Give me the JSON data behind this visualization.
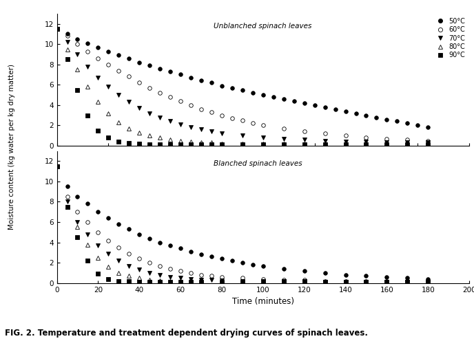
{
  "title": "FIG. 2. Temperature and treatment dependent drying curves of spinach leaves.",
  "xlabel": "Time (minutes)",
  "ylabel": "Moisture content (kg water per kg dry matter)",
  "label_unblanched": "Unblanched spinach leaves",
  "label_blanched": "Blanched spinach leaves",
  "legend_labels": [
    "50°C",
    "60°C",
    "70°C",
    "80°C",
    "90°C"
  ],
  "xlim": [
    0,
    200
  ],
  "ylim": [
    0,
    13
  ],
  "yticks": [
    0,
    2,
    4,
    6,
    8,
    10,
    12
  ],
  "xticks": [
    0,
    20,
    40,
    60,
    80,
    100,
    120,
    140,
    160,
    180,
    200
  ],
  "unblanched": {
    "50C": {
      "x": [
        0,
        5,
        10,
        15,
        20,
        25,
        30,
        35,
        40,
        45,
        50,
        55,
        60,
        65,
        70,
        75,
        80,
        85,
        90,
        95,
        100,
        105,
        110,
        115,
        120,
        125,
        130,
        135,
        140,
        145,
        150,
        155,
        160,
        165,
        170,
        175,
        180
      ],
      "y": [
        11.5,
        11.0,
        10.5,
        10.1,
        9.7,
        9.3,
        8.9,
        8.6,
        8.2,
        7.9,
        7.6,
        7.3,
        7.0,
        6.7,
        6.4,
        6.2,
        5.9,
        5.7,
        5.5,
        5.2,
        5.0,
        4.8,
        4.6,
        4.4,
        4.2,
        4.0,
        3.8,
        3.6,
        3.4,
        3.2,
        3.0,
        2.8,
        2.6,
        2.4,
        2.2,
        2.0,
        1.8
      ]
    },
    "60C": {
      "x": [
        0,
        5,
        10,
        15,
        20,
        25,
        30,
        35,
        40,
        45,
        50,
        55,
        60,
        65,
        70,
        75,
        80,
        85,
        90,
        95,
        100,
        110,
        120,
        130,
        140,
        150,
        160,
        170,
        180
      ],
      "y": [
        11.5,
        10.8,
        10.0,
        9.3,
        8.6,
        8.0,
        7.4,
        6.8,
        6.2,
        5.7,
        5.2,
        4.8,
        4.4,
        4.0,
        3.6,
        3.3,
        3.0,
        2.7,
        2.5,
        2.2,
        2.0,
        1.7,
        1.4,
        1.2,
        1.0,
        0.8,
        0.7,
        0.6,
        0.5
      ]
    },
    "70C": {
      "x": [
        0,
        5,
        10,
        15,
        20,
        25,
        30,
        35,
        40,
        45,
        50,
        55,
        60,
        65,
        70,
        75,
        80,
        90,
        100,
        110,
        120,
        130,
        140,
        150,
        160,
        170,
        180
      ],
      "y": [
        11.5,
        10.2,
        9.0,
        7.8,
        6.7,
        5.8,
        5.0,
        4.3,
        3.7,
        3.2,
        2.8,
        2.4,
        2.1,
        1.8,
        1.6,
        1.4,
        1.2,
        1.0,
        0.8,
        0.7,
        0.6,
        0.5,
        0.4,
        0.4,
        0.3,
        0.3,
        0.3
      ]
    },
    "80C": {
      "x": [
        0,
        5,
        10,
        15,
        20,
        25,
        30,
        35,
        40,
        45,
        50,
        55,
        60,
        65,
        70,
        75,
        80,
        90,
        100,
        110,
        120,
        130,
        140,
        150,
        160,
        170,
        180
      ],
      "y": [
        11.5,
        9.5,
        7.5,
        5.8,
        4.3,
        3.2,
        2.3,
        1.7,
        1.3,
        1.0,
        0.8,
        0.6,
        0.5,
        0.4,
        0.3,
        0.3,
        0.2,
        0.2,
        0.2,
        0.2,
        0.2,
        0.15,
        0.15,
        0.15,
        0.15,
        0.1,
        0.1
      ]
    },
    "90C": {
      "x": [
        0,
        5,
        10,
        15,
        20,
        25,
        30,
        35,
        40,
        45,
        50,
        55,
        60,
        65,
        70,
        75,
        80,
        90,
        100,
        110,
        120,
        130,
        140,
        150,
        160,
        170,
        180
      ],
      "y": [
        11.5,
        8.5,
        5.5,
        3.0,
        1.5,
        0.8,
        0.4,
        0.25,
        0.18,
        0.15,
        0.13,
        0.12,
        0.11,
        0.1,
        0.1,
        0.1,
        0.1,
        0.1,
        0.1,
        0.1,
        0.1,
        0.1,
        0.1,
        0.1,
        0.1,
        0.1,
        0.1
      ]
    }
  },
  "blanched": {
    "50C": {
      "x": [
        0,
        5,
        10,
        15,
        20,
        25,
        30,
        35,
        40,
        45,
        50,
        55,
        60,
        65,
        70,
        75,
        80,
        85,
        90,
        95,
        100,
        110,
        120,
        130,
        140,
        150,
        160,
        170,
        180
      ],
      "y": [
        11.5,
        9.5,
        8.5,
        7.8,
        7.0,
        6.4,
        5.8,
        5.3,
        4.8,
        4.4,
        4.0,
        3.7,
        3.4,
        3.1,
        2.8,
        2.6,
        2.4,
        2.2,
        2.0,
        1.8,
        1.7,
        1.4,
        1.2,
        1.0,
        0.8,
        0.7,
        0.6,
        0.5,
        0.4
      ]
    },
    "60C": {
      "x": [
        0,
        5,
        10,
        15,
        20,
        25,
        30,
        35,
        40,
        45,
        50,
        55,
        60,
        65,
        70,
        75,
        80,
        90,
        100,
        110,
        120,
        130,
        140,
        150,
        160,
        170,
        180
      ],
      "y": [
        11.5,
        8.5,
        7.0,
        6.0,
        5.0,
        4.2,
        3.5,
        2.9,
        2.4,
        2.0,
        1.7,
        1.4,
        1.2,
        1.0,
        0.8,
        0.7,
        0.6,
        0.5,
        0.4,
        0.3,
        0.3,
        0.2,
        0.2,
        0.2,
        0.2,
        0.15,
        0.15
      ]
    },
    "70C": {
      "x": [
        0,
        5,
        10,
        15,
        20,
        25,
        30,
        35,
        40,
        45,
        50,
        55,
        60,
        65,
        70,
        75,
        80,
        90,
        100,
        110,
        120,
        130,
        140,
        150,
        160,
        170,
        180
      ],
      "y": [
        11.5,
        8.0,
        6.0,
        4.8,
        3.7,
        2.9,
        2.2,
        1.7,
        1.3,
        1.0,
        0.8,
        0.6,
        0.5,
        0.4,
        0.3,
        0.3,
        0.25,
        0.2,
        0.2,
        0.15,
        0.15,
        0.1,
        0.1,
        0.1,
        0.1,
        0.1,
        0.1
      ]
    },
    "80C": {
      "x": [
        0,
        5,
        10,
        15,
        20,
        25,
        30,
        35,
        40,
        45,
        50,
        55,
        60,
        65,
        70,
        80,
        90,
        100,
        110,
        120,
        130,
        140,
        150,
        160,
        170,
        180
      ],
      "y": [
        11.5,
        7.5,
        5.5,
        3.8,
        2.5,
        1.6,
        1.0,
        0.7,
        0.5,
        0.35,
        0.25,
        0.2,
        0.15,
        0.13,
        0.12,
        0.1,
        0.1,
        0.1,
        0.1,
        0.1,
        0.1,
        0.1,
        0.1,
        0.1,
        0.1,
        0.1
      ]
    },
    "90C": {
      "x": [
        0,
        5,
        10,
        15,
        20,
        25,
        30,
        35,
        40,
        45,
        50,
        55,
        60,
        65,
        70,
        80,
        90,
        100,
        110,
        120,
        130,
        140,
        150,
        160,
        170,
        180
      ],
      "y": [
        11.5,
        7.5,
        4.5,
        2.2,
        0.9,
        0.4,
        0.2,
        0.15,
        0.12,
        0.1,
        0.1,
        0.1,
        0.1,
        0.1,
        0.1,
        0.1,
        0.1,
        0.1,
        0.1,
        0.1,
        0.1,
        0.1,
        0.1,
        0.1,
        0.1,
        0.1
      ]
    }
  },
  "markers": [
    "o",
    "o",
    "v",
    "^",
    "s"
  ],
  "facecolors": [
    "black",
    "none",
    "black",
    "none",
    "black"
  ],
  "edgecolors": [
    "black",
    "black",
    "black",
    "black",
    "black"
  ],
  "marker_size": 4,
  "background_color": "#ffffff"
}
